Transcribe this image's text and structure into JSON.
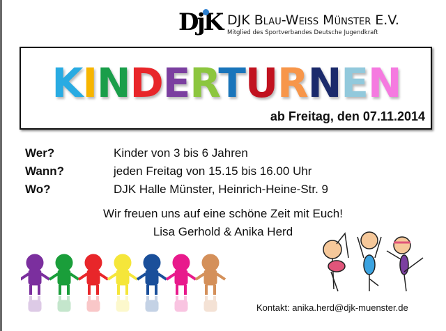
{
  "header": {
    "logo": "DjK",
    "club_name": "DJK Blau-Weiss Münster E.V.",
    "club_subtitle": "Mitglied des Sportverbandes Deutsche Jugendkraft"
  },
  "title": {
    "letters": [
      {
        "char": "K",
        "color": "#29abe2"
      },
      {
        "char": "I",
        "color": "#f7b500"
      },
      {
        "char": "N",
        "color": "#1a9e4a"
      },
      {
        "char": "D",
        "color": "#e8262a"
      },
      {
        "char": "E",
        "color": "#7b3fa0"
      },
      {
        "char": "R",
        "color": "#8cc63f"
      },
      {
        "char": "T",
        "color": "#1a75bb"
      },
      {
        "char": "U",
        "color": "#c1121f"
      },
      {
        "char": "R",
        "color": "#f7964a"
      },
      {
        "char": "N",
        "color": "#1b2a6b"
      },
      {
        "char": "E",
        "color": "#92c9dc"
      },
      {
        "char": "N",
        "color": "#f57ae0"
      }
    ],
    "date": "ab Freitag, den 07.11.2014"
  },
  "details": [
    {
      "label": "Wer?",
      "value": "Kinder von 3 bis 6 Jahren"
    },
    {
      "label": "Wann?",
      "value": "jeden Freitag von 15.15 bis 16.00 Uhr"
    },
    {
      "label": "Wo?",
      "value": "DJK Halle Münster, Heinrich-Heine-Str. 9"
    }
  ],
  "message": "Wir freuen uns auf eine schöne Zeit mit Euch!",
  "signature": "Lisa Gerhold & Anika Herd",
  "contact": "Kontakt: anika.herd@djk-muenster.de",
  "kids_colors": [
    "#7b2f9e",
    "#1a9e3a",
    "#e8262a",
    "#f5e63a",
    "#1a4f9a",
    "#e81a8c",
    "#d4905a"
  ]
}
